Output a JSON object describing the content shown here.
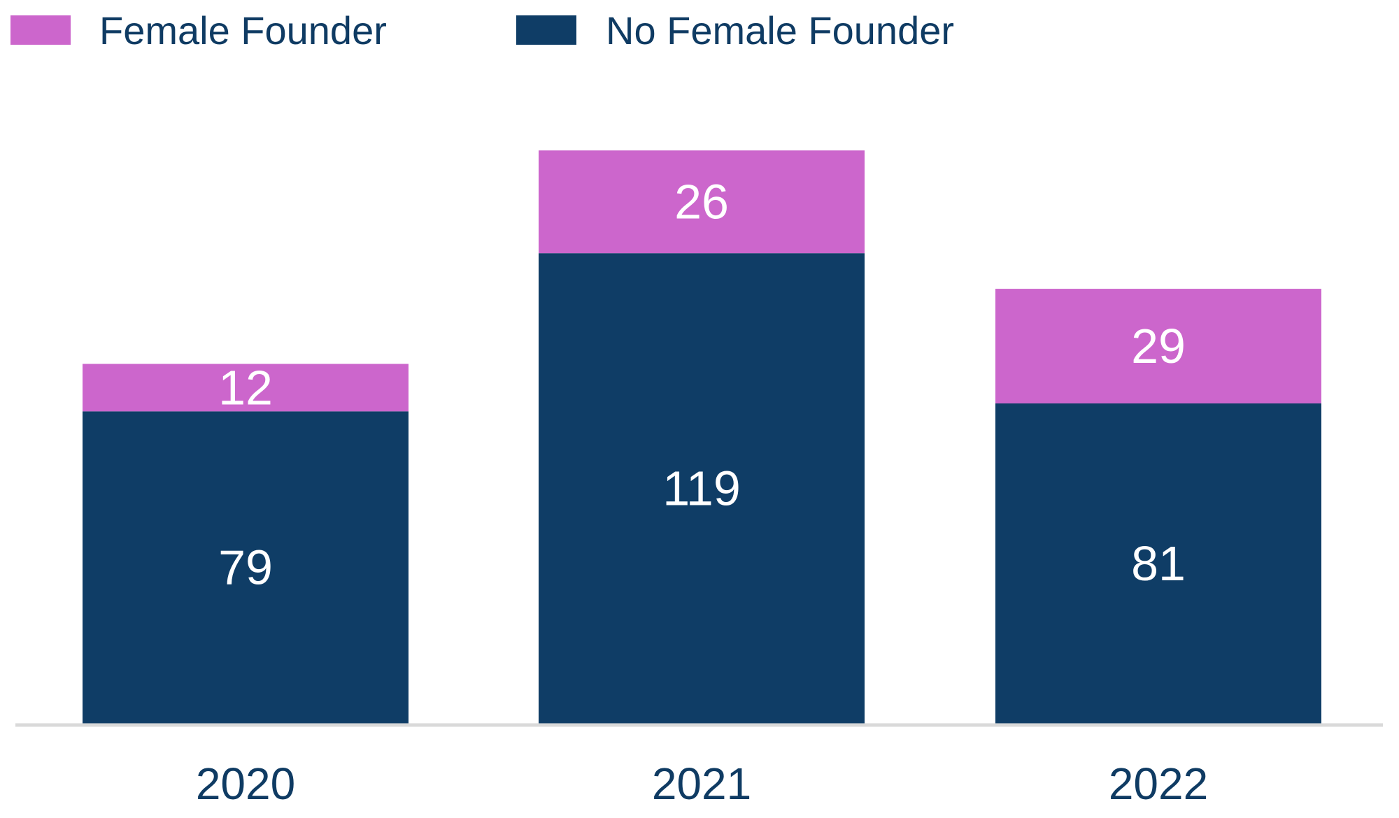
{
  "chart_data": {
    "type": "bar",
    "stacked": true,
    "categories": [
      "2020",
      "2021",
      "2022"
    ],
    "series": [
      {
        "name": "No Female Founder",
        "values": [
          79,
          119,
          81
        ],
        "color": "#0f3d66"
      },
      {
        "name": "Female Founder",
        "values": [
          12,
          26,
          29
        ],
        "color": "#cc66cc"
      }
    ],
    "legend": {
      "placement": "top-left",
      "items": [
        {
          "label": "Female Founder",
          "color": "#cc66cc"
        },
        {
          "label": "No Female Founder",
          "color": "#0f3d66"
        }
      ]
    },
    "title": "",
    "xlabel": "",
    "ylabel": "",
    "ylim": [
      0,
      145
    ],
    "grid": false,
    "data_labels": true
  }
}
